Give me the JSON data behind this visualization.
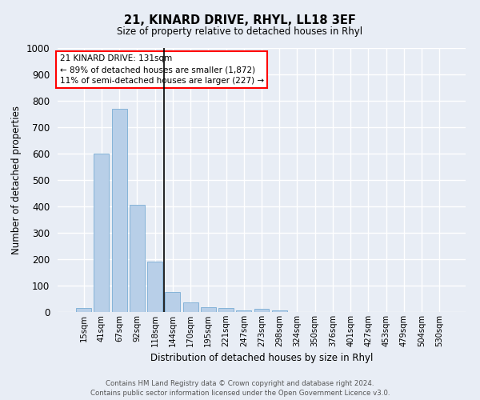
{
  "title": "21, KINARD DRIVE, RHYL, LL18 3EF",
  "subtitle": "Size of property relative to detached houses in Rhyl",
  "xlabel": "Distribution of detached houses by size in Rhyl",
  "ylabel": "Number of detached properties",
  "categories": [
    "15sqm",
    "41sqm",
    "67sqm",
    "92sqm",
    "118sqm",
    "144sqm",
    "170sqm",
    "195sqm",
    "221sqm",
    "247sqm",
    "273sqm",
    "298sqm",
    "324sqm",
    "350sqm",
    "376sqm",
    "401sqm",
    "427sqm",
    "453sqm",
    "479sqm",
    "504sqm",
    "530sqm"
  ],
  "values": [
    15,
    600,
    770,
    405,
    190,
    75,
    37,
    18,
    15,
    5,
    13,
    7,
    0,
    0,
    0,
    0,
    0,
    0,
    0,
    0,
    0
  ],
  "bar_color": "#b8cfe8",
  "bar_edge_color": "#7aadd4",
  "vline_x": 4.5,
  "annotation_line1": "21 KINARD DRIVE: 131sqm",
  "annotation_line2": "← 89% of detached houses are smaller (1,872)",
  "annotation_line3": "11% of semi-detached houses are larger (227) →",
  "ylim": [
    0,
    1000
  ],
  "yticks": [
    0,
    100,
    200,
    300,
    400,
    500,
    600,
    700,
    800,
    900,
    1000
  ],
  "bg_color": "#e8edf5",
  "plot_bg_color": "#e8edf5",
  "grid_color": "#ffffff",
  "footer_line1": "Contains HM Land Registry data © Crown copyright and database right 2024.",
  "footer_line2": "Contains public sector information licensed under the Open Government Licence v3.0."
}
